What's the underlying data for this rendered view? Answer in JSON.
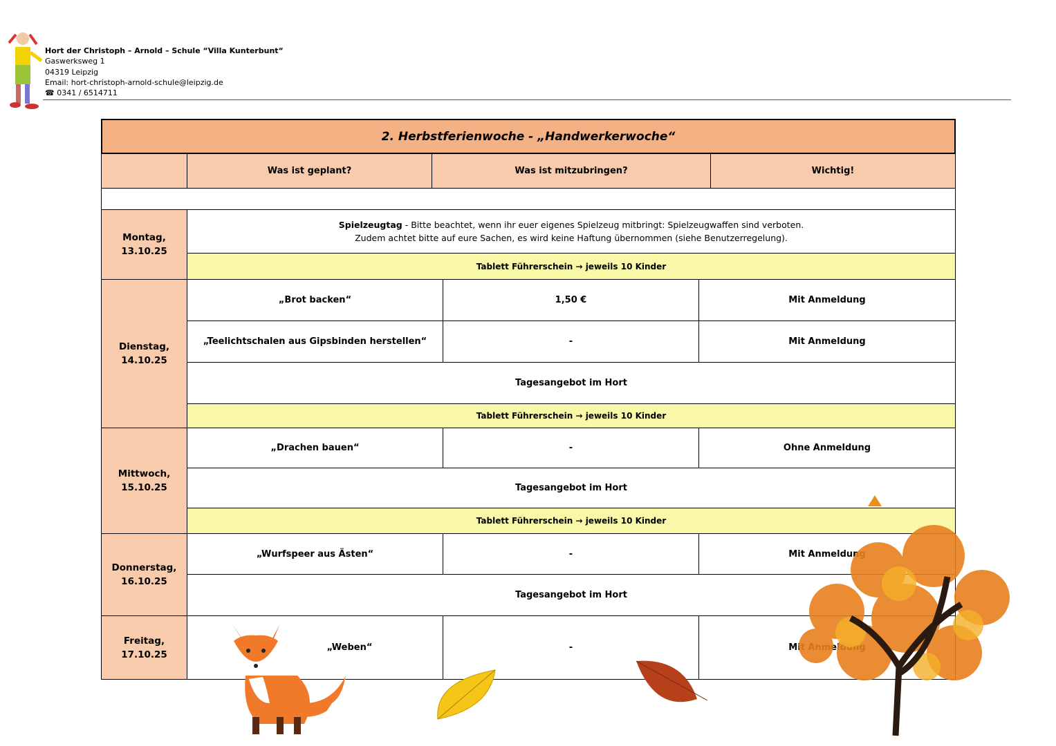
{
  "header": {
    "org": "Hort der Christoph – Arnold – Schule “Villa Kunterbunt“",
    "street": "Gaswerksweg 1",
    "city": "04319 Leipzig",
    "email": "Email: hort-christoph-arnold-schule@leipzig.de",
    "phone": "☎ 0341 / 6514711"
  },
  "table": {
    "title": "2. Herbstferienwoche - „Handwerkerwoche“",
    "columns": [
      "Was ist geplant?",
      "Was ist mitzubringen?",
      "Wichtig!"
    ],
    "days": [
      {
        "day": "Montag,",
        "date": "13.10.25"
      },
      {
        "day": "Dienstag,",
        "date": "14.10.25"
      },
      {
        "day": "Mittwoch,",
        "date": "15.10.25"
      },
      {
        "day": "Donnerstag,",
        "date": "16.10.25"
      },
      {
        "day": "Freitag,",
        "date": "17.10.25"
      }
    ],
    "monday": {
      "bold": "Spielzeugtag",
      "line1": " - Bitte beachtet, wenn ihr euer eigenes Spielzeug mitbringt: Spielzeugwaffen sind verboten.",
      "line2": "Zudem achtet bitte auf eure Sachen, es wird keine Haftung übernommen (siehe Benutzerregelung)."
    },
    "tablet": "Tablett Führerschein → jeweils 10 Kinder",
    "tagesangebot": "Tagesangebot im Hort",
    "rows": [
      {
        "plan": "„Brot backen“",
        "bring": "1,50 €",
        "note": "Mit Anmeldung"
      },
      {
        "plan": "„Teelichtschalen aus Gipsbinden herstellen“",
        "bring": "-",
        "note": "Mit Anmeldung"
      },
      {
        "plan": "„Drachen bauen“",
        "bring": "-",
        "note": "Ohne Anmeldung"
      },
      {
        "plan": "„Wurfspeer aus Ästen“",
        "bring": "-",
        "note": "Mit Anmeldung"
      },
      {
        "plan": "„Weben“",
        "bring": "-",
        "note": "Mit Anmeldung"
      }
    ]
  },
  "colors": {
    "title_bg": "#f4b183",
    "header_bg": "#f8cbad",
    "tablet_bg": "#f9f7a8"
  }
}
